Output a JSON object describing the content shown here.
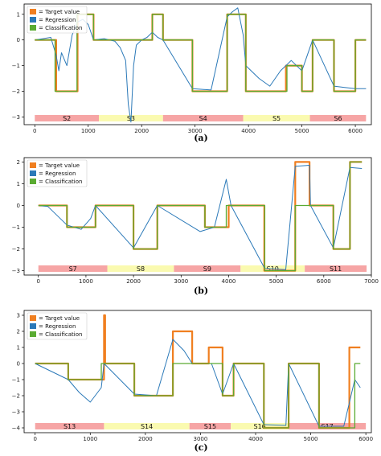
{
  "legend": {
    "target": "= Target value",
    "regression": "= Regression",
    "classification": "= Classification"
  },
  "colors": {
    "target": "#f07f20",
    "regression": "#2b79b8",
    "classification": "#5aab32",
    "segment_red": "#f6a5a5",
    "segment_yellow": "#fafab0"
  },
  "chart_data": [
    {
      "type": "line",
      "caption": "(a)",
      "xlim": [
        -200,
        6300
      ],
      "ylim": [
        -3.3,
        1.4
      ],
      "xticks": [
        0,
        1000,
        2000,
        3000,
        4000,
        5000,
        6000
      ],
      "yticks": [
        1,
        0,
        -1,
        -2,
        -3
      ],
      "segments": [
        {
          "label": "S2",
          "start": 0,
          "end": 1200,
          "color": "red"
        },
        {
          "label": "S3",
          "start": 1200,
          "end": 2400,
          "color": "yellow"
        },
        {
          "label": "S4",
          "start": 2400,
          "end": 3900,
          "color": "red"
        },
        {
          "label": "S5",
          "start": 3900,
          "end": 5150,
          "color": "yellow"
        },
        {
          "label": "S6",
          "start": 5150,
          "end": 6200,
          "color": "red"
        }
      ],
      "series": [
        {
          "key": "target",
          "steps": [
            [
              0,
              0
            ],
            [
              400,
              -2
            ],
            [
              800,
              1
            ],
            [
              1100,
              0
            ],
            [
              2200,
              1
            ],
            [
              2400,
              0
            ],
            [
              2950,
              -2
            ],
            [
              3600,
              1
            ],
            [
              3950,
              -2
            ],
            [
              4700,
              -1
            ],
            [
              5000,
              -2
            ],
            [
              5200,
              0
            ],
            [
              5600,
              -2
            ],
            [
              6000,
              0
            ],
            [
              6200,
              0
            ]
          ]
        },
        {
          "key": "classification",
          "steps": [
            [
              0,
              0
            ],
            [
              380,
              -2
            ],
            [
              790,
              1
            ],
            [
              1100,
              0
            ],
            [
              2200,
              1
            ],
            [
              2400,
              0
            ],
            [
              2950,
              -2
            ],
            [
              3600,
              1
            ],
            [
              3950,
              -2
            ],
            [
              4720,
              -1
            ],
            [
              5000,
              -2
            ],
            [
              5200,
              0
            ],
            [
              5600,
              -2
            ],
            [
              6000,
              0
            ],
            [
              6200,
              0
            ]
          ]
        },
        {
          "key": "regression",
          "points": [
            [
              0,
              0
            ],
            [
              300,
              0.1
            ],
            [
              400,
              -0.6
            ],
            [
              450,
              -1.2
            ],
            [
              500,
              -0.5
            ],
            [
              600,
              -1.0
            ],
            [
              700,
              0.2
            ],
            [
              800,
              0.7
            ],
            [
              900,
              0.8
            ],
            [
              1000,
              0.6
            ],
            [
              1100,
              0.0
            ],
            [
              1300,
              0.05
            ],
            [
              1500,
              -0.05
            ],
            [
              1600,
              -0.3
            ],
            [
              1700,
              -0.8
            ],
            [
              1750,
              -2.5
            ],
            [
              1800,
              -3.2
            ],
            [
              1850,
              -1.0
            ],
            [
              1900,
              -0.2
            ],
            [
              2000,
              0.0
            ],
            [
              2100,
              0.1
            ],
            [
              2200,
              0.3
            ],
            [
              2300,
              0.1
            ],
            [
              2400,
              0.0
            ],
            [
              2950,
              -1.9
            ],
            [
              3300,
              -1.95
            ],
            [
              3600,
              0.9
            ],
            [
              3700,
              1.1
            ],
            [
              3800,
              1.25
            ],
            [
              3900,
              0.2
            ],
            [
              3950,
              -1.0
            ],
            [
              4200,
              -1.5
            ],
            [
              4400,
              -1.8
            ],
            [
              4600,
              -1.2
            ],
            [
              4800,
              -0.8
            ],
            [
              5000,
              -1.2
            ],
            [
              5200,
              0.0
            ],
            [
              5600,
              -1.8
            ],
            [
              5800,
              -1.85
            ],
            [
              6000,
              -1.9
            ],
            [
              6200,
              -1.9
            ]
          ]
        }
      ]
    },
    {
      "type": "line",
      "caption": "(b)",
      "xlim": [
        -300,
        7000
      ],
      "ylim": [
        -3.2,
        2.2
      ],
      "xticks": [
        0,
        1000,
        2000,
        3000,
        4000,
        5000,
        6000,
        7000
      ],
      "yticks": [
        2,
        1,
        0,
        -1,
        -2,
        -3
      ],
      "segments": [
        {
          "label": "S7",
          "start": 0,
          "end": 1450,
          "color": "red"
        },
        {
          "label": "S8",
          "start": 1450,
          "end": 2850,
          "color": "yellow"
        },
        {
          "label": "S9",
          "start": 2850,
          "end": 4250,
          "color": "red"
        },
        {
          "label": "S10",
          "start": 4250,
          "end": 5600,
          "color": "yellow"
        },
        {
          "label": "S11",
          "start": 5600,
          "end": 6900,
          "color": "red"
        }
      ],
      "series": [
        {
          "key": "target",
          "steps": [
            [
              0,
              0
            ],
            [
              600,
              -1
            ],
            [
              1200,
              0
            ],
            [
              2000,
              -2
            ],
            [
              2500,
              0
            ],
            [
              3500,
              -1
            ],
            [
              4000,
              0
            ],
            [
              4750,
              -3
            ],
            [
              5400,
              2
            ],
            [
              5700,
              0
            ],
            [
              6200,
              -2
            ],
            [
              6550,
              2
            ],
            [
              6800,
              2
            ]
          ]
        },
        {
          "key": "classification",
          "steps": [
            [
              0,
              0
            ],
            [
              600,
              -1
            ],
            [
              1200,
              0
            ],
            [
              2000,
              -2
            ],
            [
              2500,
              0
            ],
            [
              3500,
              -1
            ],
            [
              3950,
              0
            ],
            [
              4760,
              -3
            ],
            [
              5400,
              0
            ],
            [
              6200,
              -2
            ],
            [
              6550,
              2
            ],
            [
              6800,
              2
            ]
          ]
        },
        {
          "key": "regression",
          "points": [
            [
              0,
              0
            ],
            [
              200,
              -0.05
            ],
            [
              600,
              -0.9
            ],
            [
              900,
              -1.1
            ],
            [
              1100,
              -0.6
            ],
            [
              1200,
              0.0
            ],
            [
              2000,
              -1.95
            ],
            [
              2500,
              0.0
            ],
            [
              3400,
              -1.2
            ],
            [
              3700,
              -1.0
            ],
            [
              3950,
              1.2
            ],
            [
              4050,
              0.0
            ],
            [
              4760,
              -2.9
            ],
            [
              5200,
              -2.95
            ],
            [
              5400,
              1.8
            ],
            [
              5700,
              1.85
            ],
            [
              5720,
              0.0
            ],
            [
              6200,
              -1.95
            ],
            [
              6550,
              1.75
            ],
            [
              6800,
              1.7
            ]
          ]
        }
      ]
    },
    {
      "type": "line",
      "caption": "(c)",
      "xlim": [
        -200,
        6100
      ],
      "ylim": [
        -4.3,
        3.3
      ],
      "xticks": [
        0,
        1000,
        2000,
        3000,
        4000,
        5000,
        6000
      ],
      "yticks": [
        3,
        2,
        1,
        0,
        -1,
        -2,
        -3,
        -4
      ],
      "segments": [
        {
          "label": "S13",
          "start": 0,
          "end": 1250,
          "color": "red"
        },
        {
          "label": "S14",
          "start": 1250,
          "end": 2800,
          "color": "yellow"
        },
        {
          "label": "S15",
          "start": 2800,
          "end": 3550,
          "color": "red"
        },
        {
          "label": "S16",
          "start": 3550,
          "end": 4600,
          "color": "yellow"
        },
        {
          "label": "S17",
          "start": 4600,
          "end": 6000,
          "color": "red"
        }
      ],
      "series": [
        {
          "key": "target",
          "steps": [
            [
              0,
              0
            ],
            [
              600,
              -1
            ],
            [
              1250,
              3
            ],
            [
              1270,
              0
            ],
            [
              1800,
              -2
            ],
            [
              2500,
              2
            ],
            [
              2850,
              0
            ],
            [
              3150,
              1
            ],
            [
              3400,
              -2
            ],
            [
              3600,
              0
            ],
            [
              4150,
              -4
            ],
            [
              4600,
              0
            ],
            [
              5150,
              -4
            ],
            [
              5700,
              1
            ],
            [
              5900,
              1
            ]
          ]
        },
        {
          "key": "classification",
          "steps": [
            [
              0,
              0
            ],
            [
              600,
              -1
            ],
            [
              1200,
              0
            ],
            [
              1800,
              -2
            ],
            [
              2500,
              0
            ],
            [
              3150,
              0
            ],
            [
              3400,
              -2
            ],
            [
              3600,
              0
            ],
            [
              4150,
              -4
            ],
            [
              4600,
              0
            ],
            [
              5150,
              -4
            ],
            [
              5800,
              0
            ],
            [
              5900,
              0
            ]
          ]
        },
        {
          "key": "regression",
          "points": [
            [
              0,
              0
            ],
            [
              600,
              -1.0
            ],
            [
              800,
              -1.8
            ],
            [
              1000,
              -2.4
            ],
            [
              1200,
              -1.5
            ],
            [
              1250,
              0.0
            ],
            [
              1800,
              -1.9
            ],
            [
              2200,
              -2.0
            ],
            [
              2500,
              1.5
            ],
            [
              2700,
              0.8
            ],
            [
              2850,
              0.0
            ],
            [
              3200,
              0.0
            ],
            [
              3400,
              -1.9
            ],
            [
              3600,
              0.0
            ],
            [
              4150,
              -3.8
            ],
            [
              4550,
              -3.85
            ],
            [
              4600,
              0.0
            ],
            [
              5150,
              -3.9
            ],
            [
              5600,
              -3.9
            ],
            [
              5800,
              -1.0
            ],
            [
              5900,
              -1.5
            ]
          ]
        }
      ]
    }
  ]
}
